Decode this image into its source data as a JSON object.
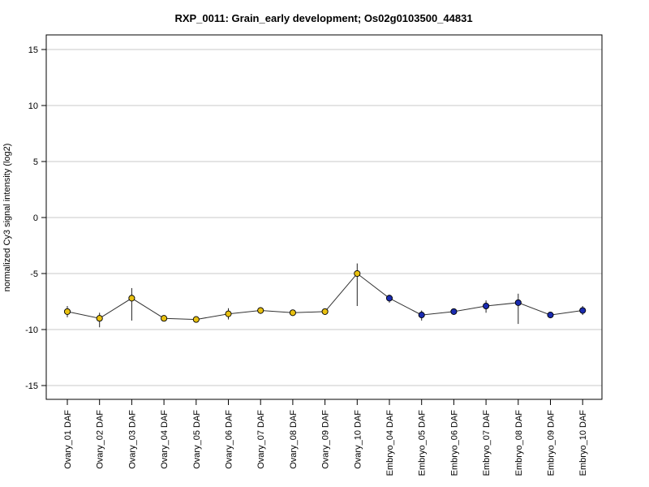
{
  "chart_data": {
    "type": "line",
    "title": "RXP_0011: Grain_early development; Os02g0103500_44831",
    "xlabel": "",
    "ylabel": "normalized Cy3 signal intensity (log2)",
    "ylim": [
      -16,
      16
    ],
    "yticks": [
      15,
      10,
      5,
      0,
      -5,
      -10,
      -15
    ],
    "ytick_labels": [
      "15",
      "10",
      "5",
      "0",
      "-5",
      "-10",
      "-15"
    ],
    "grid": true,
    "legend": "none",
    "categories": [
      "Ovary_01 DAF",
      "Ovary_02 DAF",
      "Ovary_03 DAF",
      "Ovary_04 DAF",
      "Ovary_05 DAF",
      "Ovary_06 DAF",
      "Ovary_07 DAF",
      "Ovary_08 DAF",
      "Ovary_09 DAF",
      "Ovary_10 DAF",
      "Embryo_04 DAF",
      "Embryo_05 DAF",
      "Embryo_06 DAF",
      "Embryo_07 DAF",
      "Embryo_08 DAF",
      "Embryo_09 DAF",
      "Embryo_10 DAF"
    ],
    "values": [
      -8.4,
      -9.0,
      -7.2,
      -9.0,
      -9.1,
      -8.6,
      -8.3,
      -8.5,
      -8.4,
      -5.0,
      -7.2,
      -8.7,
      -8.4,
      -7.9,
      -7.6,
      -8.7,
      -8.3
    ],
    "err_high": [
      -7.9,
      -8.5,
      -6.3,
      -8.9,
      -8.9,
      -8.1,
      -8.0,
      -8.3,
      -8.2,
      -4.1,
      -6.9,
      -8.3,
      -8.2,
      -7.4,
      -6.8,
      -8.6,
      -7.9
    ],
    "err_low": [
      -8.9,
      -9.8,
      -9.2,
      -9.1,
      -9.3,
      -9.1,
      -8.6,
      -8.6,
      -8.6,
      -7.9,
      -7.6,
      -9.2,
      -8.6,
      -8.5,
      -9.5,
      -8.8,
      -8.7
    ],
    "point_colors": [
      "#e8c010",
      "#e8c010",
      "#e8c010",
      "#e8c010",
      "#e8c010",
      "#e8c010",
      "#e8c010",
      "#e8c010",
      "#e8c010",
      "#e8c010",
      "#1a2bb0",
      "#1a2bb0",
      "#1a2bb0",
      "#1a2bb0",
      "#1a2bb0",
      "#1a2bb0",
      "#1a2bb0"
    ],
    "line_color": "#333333",
    "grid_color": "#c8c8c8"
  }
}
